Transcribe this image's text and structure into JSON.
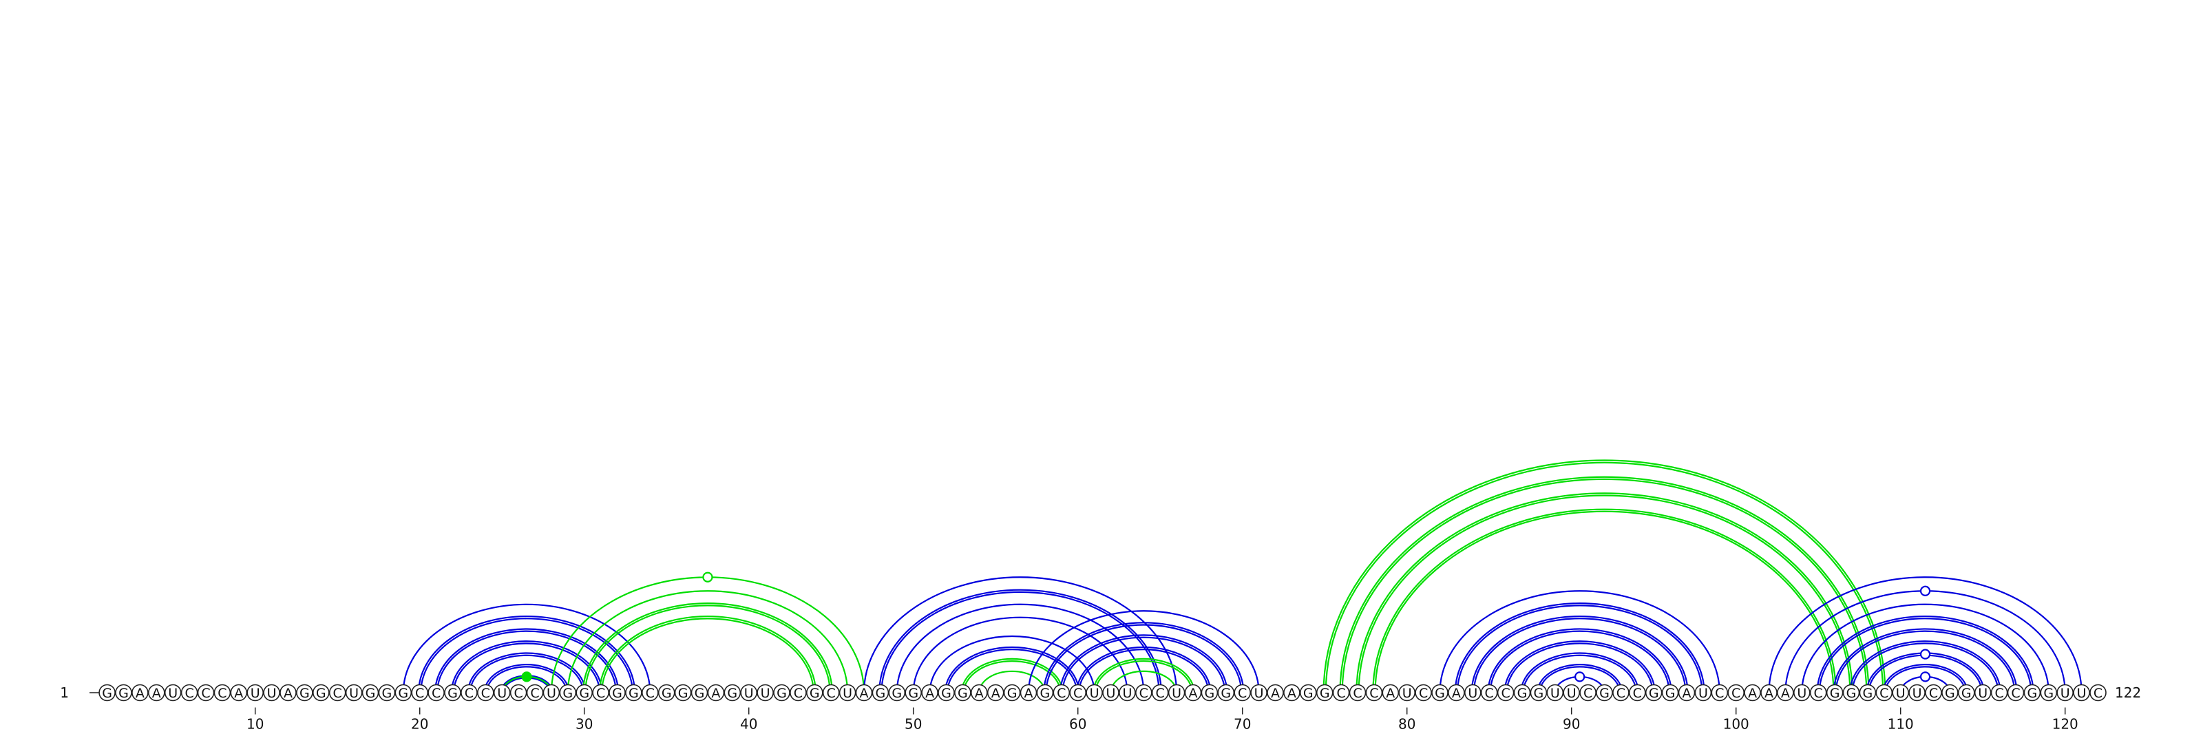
{
  "chart_data": {
    "type": "arc-diagram",
    "sequence": "GGAAUCCCAUUAGGCUGGGCCGCCUCCUGGCGGCGGGAGUUGCGCUAGGGAGGAAGAGCCUUUCCUAGGCUAAGGCCCAUCGAUCCGGUUCGCCGGAUCCAAAUCGGGCUUCGGUCCGGUUC",
    "start_label": "1",
    "end_label": "122",
    "ticks": [
      10,
      20,
      30,
      40,
      50,
      60,
      70,
      80,
      90,
      100,
      110,
      120
    ],
    "colors": {
      "blue": "#0000dd",
      "green": "#00dd00"
    },
    "arcs": [
      {
        "i": 19,
        "j": 34,
        "color": "blue",
        "double": false
      },
      {
        "i": 20,
        "j": 33,
        "color": "blue",
        "double": true
      },
      {
        "i": 21,
        "j": 32,
        "color": "blue",
        "double": true
      },
      {
        "i": 22,
        "j": 31,
        "color": "blue",
        "double": true
      },
      {
        "i": 23,
        "j": 30,
        "color": "blue",
        "double": true
      },
      {
        "i": 24,
        "j": 29,
        "color": "blue",
        "double": true
      },
      {
        "i": 25,
        "j": 28,
        "color": "blue",
        "double": true
      },
      {
        "i": 25,
        "j": 28,
        "color": "green",
        "double": false
      },
      {
        "i": 28,
        "j": 47,
        "color": "green",
        "double": false
      },
      {
        "i": 29,
        "j": 46,
        "color": "green",
        "double": false
      },
      {
        "i": 30,
        "j": 45,
        "color": "green",
        "double": true
      },
      {
        "i": 31,
        "j": 44,
        "color": "green",
        "double": true
      },
      {
        "i": 47,
        "j": 66,
        "color": "blue",
        "double": false
      },
      {
        "i": 48,
        "j": 65,
        "color": "blue",
        "double": true
      },
      {
        "i": 49,
        "j": 64,
        "color": "blue",
        "double": false
      },
      {
        "i": 50,
        "j": 63,
        "color": "blue",
        "double": false
      },
      {
        "i": 51,
        "j": 61,
        "color": "blue",
        "double": false
      },
      {
        "i": 52,
        "j": 60,
        "color": "blue",
        "double": true
      },
      {
        "i": 53,
        "j": 59,
        "color": "green",
        "double": true
      },
      {
        "i": 54,
        "j": 58,
        "color": "green",
        "double": false
      },
      {
        "i": 57,
        "j": 71,
        "color": "blue",
        "double": false
      },
      {
        "i": 58,
        "j": 70,
        "color": "blue",
        "double": true
      },
      {
        "i": 59,
        "j": 69,
        "color": "blue",
        "double": true
      },
      {
        "i": 60,
        "j": 68,
        "color": "blue",
        "double": true
      },
      {
        "i": 61,
        "j": 67,
        "color": "green",
        "double": true
      },
      {
        "i": 62,
        "j": 66,
        "color": "green",
        "double": false
      },
      {
        "i": 75,
        "j": 109,
        "color": "green",
        "double": true
      },
      {
        "i": 76,
        "j": 108,
        "color": "green",
        "double": true
      },
      {
        "i": 77,
        "j": 107,
        "color": "green",
        "double": true
      },
      {
        "i": 78,
        "j": 106,
        "color": "green",
        "double": true
      },
      {
        "i": 82,
        "j": 99,
        "color": "blue",
        "double": false
      },
      {
        "i": 83,
        "j": 98,
        "color": "blue",
        "double": true
      },
      {
        "i": 84,
        "j": 97,
        "color": "blue",
        "double": true
      },
      {
        "i": 85,
        "j": 96,
        "color": "blue",
        "double": true
      },
      {
        "i": 86,
        "j": 95,
        "color": "blue",
        "double": true
      },
      {
        "i": 87,
        "j": 94,
        "color": "blue",
        "double": true
      },
      {
        "i": 88,
        "j": 93,
        "color": "blue",
        "double": true
      },
      {
        "i": 89,
        "j": 92,
        "color": "blue",
        "double": false
      },
      {
        "i": 102,
        "j": 121,
        "color": "blue",
        "double": false
      },
      {
        "i": 103,
        "j": 120,
        "color": "blue",
        "double": false
      },
      {
        "i": 104,
        "j": 119,
        "color": "blue",
        "double": false
      },
      {
        "i": 105,
        "j": 118,
        "color": "blue",
        "double": true
      },
      {
        "i": 106,
        "j": 117,
        "color": "blue",
        "double": true
      },
      {
        "i": 107,
        "j": 116,
        "color": "blue",
        "double": true
      },
      {
        "i": 108,
        "j": 115,
        "color": "blue",
        "double": true
      },
      {
        "i": 109,
        "j": 114,
        "color": "blue",
        "double": true
      },
      {
        "i": 110,
        "j": 113,
        "color": "blue",
        "double": false
      }
    ],
    "markers": [
      {
        "i": 25,
        "j": 28,
        "color": "green",
        "filled": true
      },
      {
        "i": 28,
        "j": 47,
        "color": "green",
        "filled": false
      },
      {
        "i": 89,
        "j": 92,
        "color": "blue",
        "filled": false
      },
      {
        "i": 110,
        "j": 113,
        "color": "blue",
        "filled": false
      },
      {
        "i": 108,
        "j": 115,
        "color": "blue",
        "filled": false
      },
      {
        "i": 103,
        "j": 120,
        "color": "blue",
        "filled": false
      }
    ]
  }
}
